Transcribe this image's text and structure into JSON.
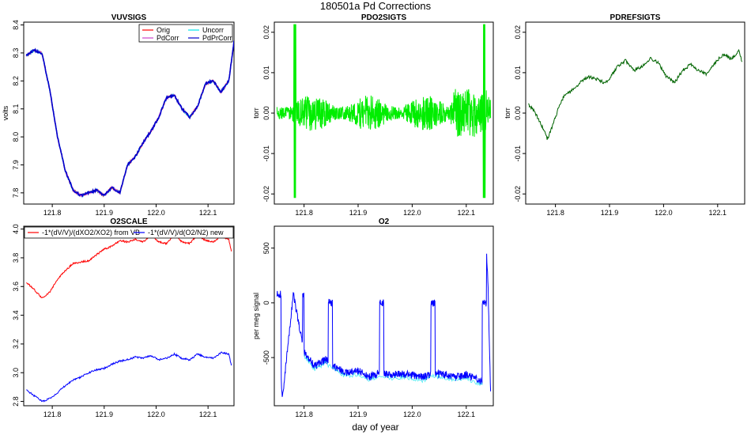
{
  "figure": {
    "title": "180501a   Pd Corrections",
    "xlabel": "day of year"
  },
  "colors": {
    "orig": "#ff0000",
    "uncorr": "#00e5ee",
    "pdcorr": "#cc44cc",
    "pdprcorr": "#0000cc",
    "pdo2": "#00ee00",
    "pdref": "#006400",
    "o2scale_vb": "#ff0000",
    "o2scale_new": "#0000ff",
    "o2_main": "#0000ff",
    "o2_alt": "#00e5ee"
  },
  "chart_data": [
    {
      "id": "vuvsigs",
      "type": "line",
      "title": "VUVSIGS",
      "xlabel": "",
      "ylabel": "volts",
      "xlim": [
        121.745,
        122.15
      ],
      "ylim": [
        7.76,
        8.41
      ],
      "xticks": [
        "121.8",
        "121.9",
        "122.0",
        "122.1"
      ],
      "yticks": [
        "7.8",
        "7.9",
        "8.0",
        "8.1",
        "8.2",
        "8.3",
        "8.4"
      ],
      "legend_position": "top-right",
      "x": [
        121.75,
        121.765,
        121.78,
        121.795,
        121.81,
        121.825,
        121.84,
        121.855,
        121.87,
        121.885,
        121.9,
        121.915,
        121.93,
        121.945,
        121.96,
        121.975,
        121.99,
        122.005,
        122.02,
        122.035,
        122.05,
        122.065,
        122.08,
        122.095,
        122.11,
        122.125,
        122.14,
        122.15
      ],
      "series": [
        {
          "name": "Orig",
          "color_key": "orig",
          "values": [
            8.29,
            8.31,
            8.3,
            8.17,
            8.0,
            7.88,
            7.81,
            7.79,
            7.8,
            7.81,
            7.79,
            7.82,
            7.8,
            7.9,
            7.93,
            7.98,
            8.02,
            8.07,
            8.14,
            8.15,
            8.1,
            8.07,
            8.11,
            8.19,
            8.2,
            8.16,
            8.2,
            8.34
          ]
        },
        {
          "name": "Uncorr",
          "color_key": "uncorr",
          "values": [
            8.29,
            8.31,
            8.3,
            8.17,
            8.0,
            7.88,
            7.81,
            7.79,
            7.8,
            7.81,
            7.79,
            7.82,
            7.8,
            7.9,
            7.93,
            7.98,
            8.02,
            8.07,
            8.14,
            8.15,
            8.1,
            8.07,
            8.11,
            8.19,
            8.2,
            8.16,
            8.2,
            8.34
          ]
        },
        {
          "name": "PdCorr",
          "color_key": "pdcorr",
          "values": [
            8.29,
            8.31,
            8.3,
            8.17,
            8.0,
            7.88,
            7.81,
            7.79,
            7.8,
            7.81,
            7.79,
            7.82,
            7.8,
            7.9,
            7.93,
            7.98,
            8.02,
            8.07,
            8.14,
            8.15,
            8.1,
            8.07,
            8.11,
            8.19,
            8.2,
            8.16,
            8.2,
            8.34
          ]
        },
        {
          "name": "PdPrCorr",
          "color_key": "pdprcorr",
          "values": [
            8.29,
            8.31,
            8.3,
            8.17,
            8.0,
            7.88,
            7.81,
            7.79,
            7.8,
            7.81,
            7.79,
            7.82,
            7.8,
            7.9,
            7.93,
            7.98,
            8.02,
            8.07,
            8.14,
            8.15,
            8.1,
            8.07,
            8.11,
            8.19,
            8.2,
            8.16,
            8.2,
            8.34
          ]
        }
      ]
    },
    {
      "id": "pdo2sigts",
      "type": "line",
      "title": "PDO2SIGTS",
      "xlabel": "",
      "ylabel": "torr",
      "xlim": [
        121.745,
        122.15
      ],
      "ylim": [
        -0.0225,
        0.0225
      ],
      "xticks": [
        "121.8",
        "121.9",
        "122.0",
        "122.1"
      ],
      "yticks": [
        "-0.02",
        "-0.01",
        "0.00",
        "0.01",
        "0.02"
      ],
      "legend_position": "none",
      "x": [
        121.75,
        121.77,
        121.783,
        121.79,
        121.81,
        121.84,
        121.87,
        121.9,
        121.93,
        121.96,
        121.99,
        122.02,
        122.05,
        122.08,
        122.1,
        122.12,
        122.133,
        122.145
      ],
      "series": [
        {
          "name": "",
          "color_key": "pdo2",
          "values": [
            -0.001,
            -0.0012,
            0.022,
            -0.021,
            0.004,
            -0.003,
            0.005,
            -0.004,
            0.004,
            -0.003,
            0.003,
            -0.004,
            0.005,
            -0.005,
            0.008,
            -0.006,
            0.022,
            -0.021
          ]
        }
      ]
    },
    {
      "id": "pdrefsigts",
      "type": "line",
      "title": "PDREFSIGTS",
      "xlabel": "",
      "ylabel": "torr",
      "xlim": [
        121.745,
        122.15
      ],
      "ylim": [
        -0.0225,
        0.0225
      ],
      "xticks": [
        "121.8",
        "121.9",
        "122.0",
        "122.1"
      ],
      "yticks": [
        "-0.02",
        "-0.01",
        "0.00",
        "0.01",
        "0.02"
      ],
      "legend_position": "none",
      "x": [
        121.75,
        121.76,
        121.77,
        121.78,
        121.785,
        121.795,
        121.805,
        121.815,
        121.83,
        121.845,
        121.86,
        121.875,
        121.89,
        121.9,
        121.915,
        121.93,
        121.945,
        121.96,
        121.975,
        121.99,
        122.005,
        122.02,
        122.035,
        122.05,
        122.065,
        122.08,
        122.095,
        122.11,
        122.125,
        122.14,
        122.145
      ],
      "series": [
        {
          "name": "",
          "color_key": "pdref",
          "values": [
            0.002,
            0.0008,
            -0.002,
            -0.0045,
            -0.0065,
            -0.003,
            0.001,
            0.004,
            0.0055,
            0.0075,
            0.009,
            0.0085,
            0.0075,
            0.0085,
            0.0115,
            0.013,
            0.0105,
            0.0115,
            0.0135,
            0.0125,
            0.009,
            0.0075,
            0.0105,
            0.012,
            0.0105,
            0.0095,
            0.0125,
            0.0145,
            0.0135,
            0.0155,
            0.0125
          ]
        }
      ]
    },
    {
      "id": "o2scale",
      "type": "line",
      "title": "O2SCALE",
      "xlabel": "",
      "ylabel": "",
      "xlim": [
        121.745,
        122.15
      ],
      "ylim": [
        2.77,
        4.02
      ],
      "xticks": [
        "121.8",
        "121.9",
        "122.0",
        "122.1"
      ],
      "yticks": [
        "2.8",
        "3.0",
        "3.2",
        "3.4",
        "3.6",
        "3.8",
        "4.0"
      ],
      "legend_position": "top",
      "x": [
        121.75,
        121.765,
        121.78,
        121.795,
        121.81,
        121.825,
        121.84,
        121.855,
        121.87,
        121.885,
        121.9,
        121.915,
        121.93,
        121.945,
        121.96,
        121.975,
        121.99,
        122.005,
        122.02,
        122.035,
        122.05,
        122.065,
        122.08,
        122.095,
        122.11,
        122.125,
        122.14,
        122.145
      ],
      "series": [
        {
          "name": "-1*(dV/V)/(dXO2/XO2) from VB",
          "color_key": "o2scale_vb",
          "values": [
            3.63,
            3.58,
            3.52,
            3.56,
            3.65,
            3.71,
            3.76,
            3.77,
            3.78,
            3.82,
            3.86,
            3.88,
            3.92,
            3.91,
            3.93,
            3.91,
            3.96,
            3.91,
            3.9,
            3.96,
            3.91,
            3.9,
            3.96,
            3.92,
            3.91,
            3.95,
            3.93,
            3.84
          ]
        },
        {
          "name": "-1*(dV/V)/d(O2/N2) new",
          "color_key": "o2scale_new",
          "values": [
            2.88,
            2.84,
            2.8,
            2.82,
            2.86,
            2.91,
            2.95,
            2.97,
            3.0,
            3.02,
            3.03,
            3.06,
            3.08,
            3.09,
            3.11,
            3.1,
            3.12,
            3.09,
            3.1,
            3.13,
            3.1,
            3.09,
            3.13,
            3.11,
            3.1,
            3.14,
            3.13,
            3.05
          ]
        }
      ]
    },
    {
      "id": "o2",
      "type": "line",
      "title": "O2",
      "xlabel": "",
      "ylabel": "per meg signal",
      "xlim": [
        121.745,
        122.15
      ],
      "ylim": [
        -940,
        700
      ],
      "xticks": [
        "121.8",
        "121.9",
        "122.0",
        "122.1"
      ],
      "yticks": [
        "-500",
        "0",
        "500"
      ],
      "legend_position": "none",
      "x": [
        121.75,
        121.76,
        121.78,
        121.8,
        121.82,
        121.84,
        121.86,
        121.88,
        121.9,
        121.92,
        121.94,
        121.96,
        121.98,
        122.0,
        122.02,
        122.04,
        122.06,
        122.08,
        122.1,
        122.12,
        122.13,
        122.135,
        122.14,
        122.145
      ],
      "series": [
        {
          "name": "",
          "color_key": "o2_main",
          "values": [
            -100,
            -880,
            80,
            -450,
            -580,
            -520,
            -600,
            -640,
            -620,
            -680,
            -640,
            -660,
            -650,
            -660,
            -680,
            -640,
            -660,
            -680,
            -660,
            -700,
            -720,
            660,
            200,
            -820
          ]
        }
      ]
    }
  ]
}
